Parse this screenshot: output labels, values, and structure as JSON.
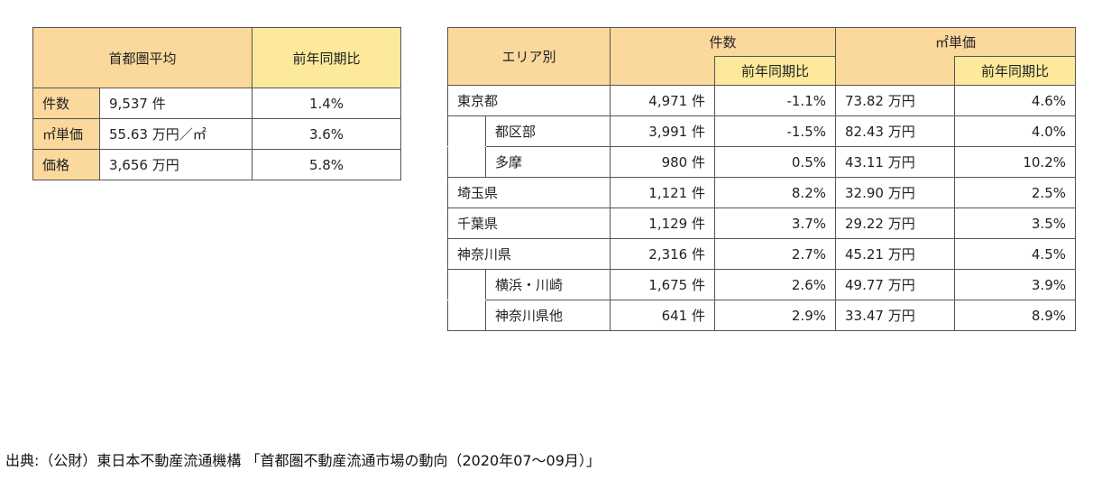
{
  "summary": {
    "title": "首都圏平均",
    "yoy_header": "前年同期比",
    "rows": [
      {
        "label": "件数",
        "value": "9,537 件",
        "yoy": "1.4%"
      },
      {
        "label": "㎡単価",
        "value": "55.63 万円／㎡",
        "yoy": "3.6%"
      },
      {
        "label": "価格",
        "value": "3,656 万円",
        "yoy": "5.8%"
      }
    ]
  },
  "area": {
    "area_header": "エリア別",
    "count_header": "件数",
    "count_yoy_header": "前年同期比",
    "price_header": "㎡単価",
    "price_yoy_header": "前年同期比",
    "rows": [
      {
        "name": "東京都",
        "count": "4,971 件",
        "count_yoy": "-1.1%",
        "price": "73.82 万円",
        "price_yoy": "4.6%"
      },
      {
        "name": "都区部",
        "count": "3,991 件",
        "count_yoy": "-1.5%",
        "price": "82.43 万円",
        "price_yoy": "4.0%"
      },
      {
        "name": "多摩",
        "count": "980 件",
        "count_yoy": "0.5%",
        "price": "43.11 万円",
        "price_yoy": "10.2%"
      },
      {
        "name": "埼玉県",
        "count": "1,121 件",
        "count_yoy": "8.2%",
        "price": "32.90 万円",
        "price_yoy": "2.5%"
      },
      {
        "name": "千葉県",
        "count": "1,129 件",
        "count_yoy": "3.7%",
        "price": "29.22 万円",
        "price_yoy": "3.5%"
      },
      {
        "name": "神奈川県",
        "count": "2,316 件",
        "count_yoy": "2.7%",
        "price": "45.21 万円",
        "price_yoy": "4.5%"
      },
      {
        "name": "横浜・川崎",
        "count": "1,675 件",
        "count_yoy": "2.6%",
        "price": "49.77 万円",
        "price_yoy": "3.9%"
      },
      {
        "name": "神奈川県他",
        "count": "641 件",
        "count_yoy": "2.9%",
        "price": "33.47 万円",
        "price_yoy": "8.9%"
      }
    ]
  },
  "source": "出典:（公財）東日本不動産流通機構 「首都圏不動産流通市場の動向（2020年07～09月）」"
}
